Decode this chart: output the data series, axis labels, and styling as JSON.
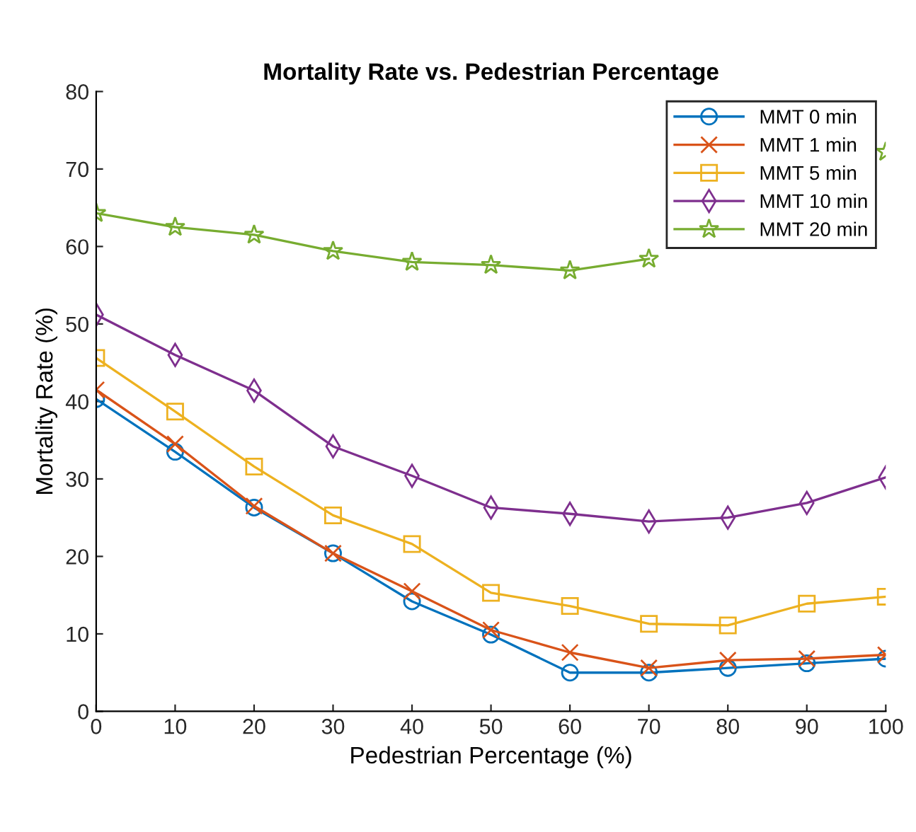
{
  "chart_data": {
    "type": "line",
    "title": "Mortality Rate vs. Pedestrian Percentage",
    "xlabel": "Pedestrian Percentage (%)",
    "ylabel": "Mortality Rate (%)",
    "x": [
      0,
      10,
      20,
      30,
      40,
      50,
      60,
      70,
      80,
      90,
      100
    ],
    "series": [
      {
        "name": "MMT 0 min",
        "color": "#0072bd",
        "marker": "circle",
        "values": [
          40.3,
          33.5,
          26.3,
          20.4,
          14.2,
          9.9,
          5.0,
          5.0,
          5.6,
          6.2,
          6.8
        ]
      },
      {
        "name": "MMT 1 min",
        "color": "#d95319",
        "marker": "cross",
        "values": [
          41.5,
          34.5,
          26.5,
          20.4,
          15.5,
          10.5,
          7.6,
          5.6,
          6.6,
          6.8,
          7.3
        ]
      },
      {
        "name": "MMT 5 min",
        "color": "#edb120",
        "marker": "square",
        "values": [
          45.6,
          38.7,
          31.6,
          25.3,
          21.6,
          15.3,
          13.6,
          11.3,
          11.1,
          13.9,
          14.8
        ]
      },
      {
        "name": "MMT 10 min",
        "color": "#7e2f8e",
        "marker": "diamond",
        "values": [
          51.2,
          46.0,
          41.4,
          34.2,
          30.4,
          26.3,
          25.5,
          24.5,
          25.0,
          26.9,
          30.2
        ]
      },
      {
        "name": "MMT 20 min",
        "color": "#77ac30",
        "marker": "star",
        "values": [
          64.3,
          62.5,
          61.5,
          59.4,
          58.0,
          57.6,
          56.9,
          58.4,
          null,
          null,
          72.2
        ]
      }
    ],
    "xlim": [
      0,
      100
    ],
    "xticks": [
      0,
      10,
      20,
      30,
      40,
      50,
      60,
      70,
      80,
      90,
      100
    ],
    "ylim": [
      0,
      80
    ],
    "yticks": [
      0,
      10,
      20,
      30,
      40,
      50,
      60,
      70,
      80
    ],
    "grid": false,
    "legend": "top right",
    "line_style": "solid"
  }
}
